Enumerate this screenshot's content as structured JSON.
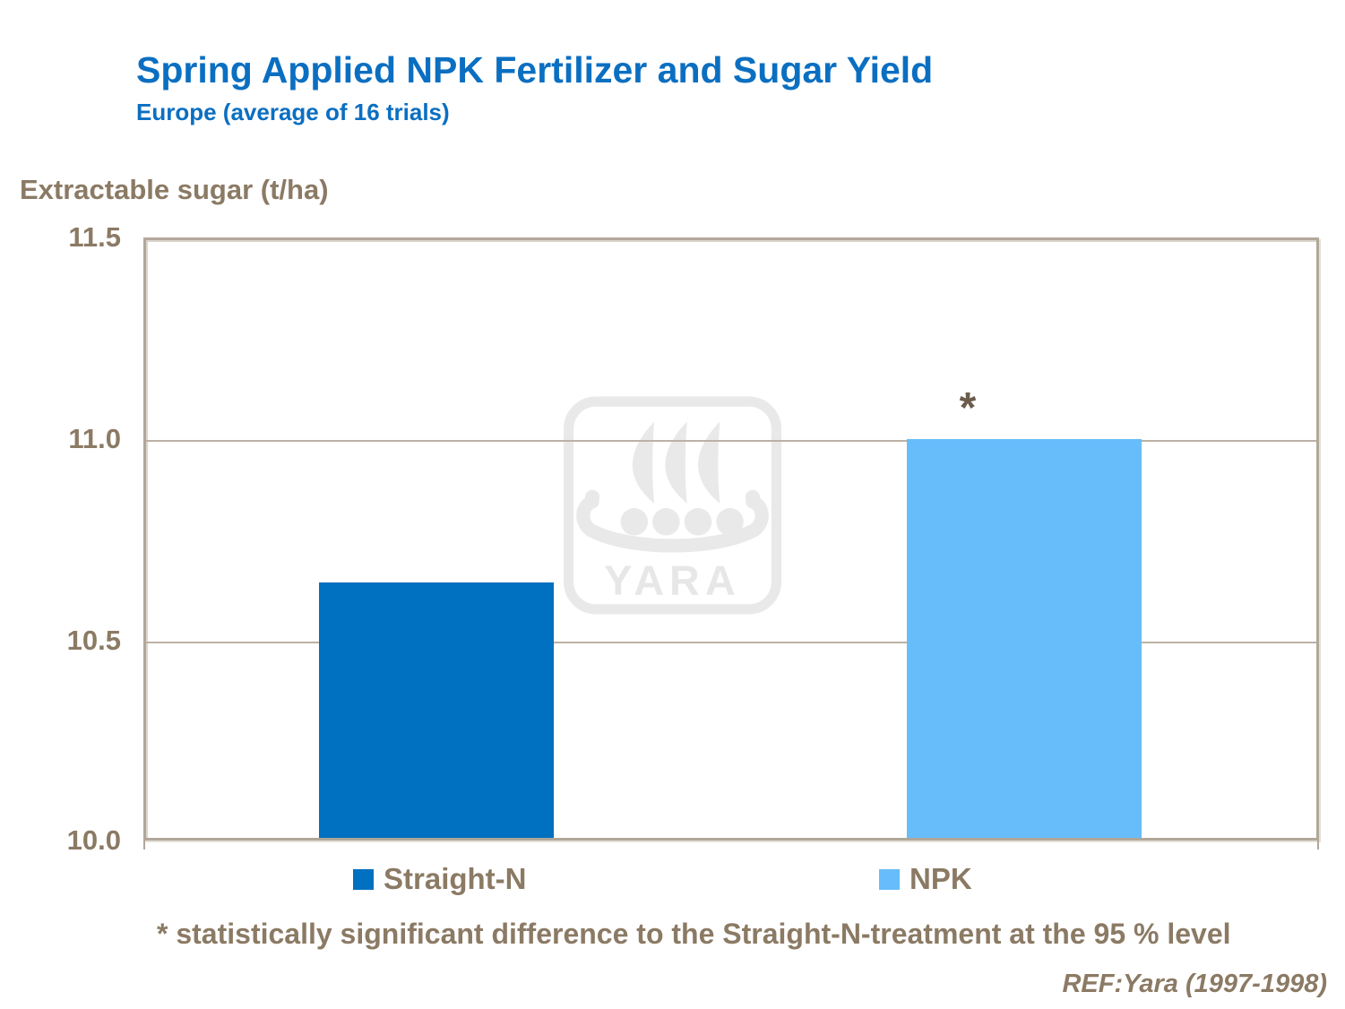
{
  "header": {
    "title": "Spring Applied NPK Fertilizer and Sugar Yield",
    "subtitle": "Europe (average of 16 trials)"
  },
  "axis": {
    "y_title": "Extractable sugar (t/ha)"
  },
  "chart_data": {
    "type": "bar",
    "title": "Spring Applied NPK Fertilizer and Sugar Yield",
    "subtitle": "Europe (average of 16 trials)",
    "ylabel": "Extractable sugar (t/ha)",
    "xlabel": "",
    "categories": [
      "Straight-N",
      "NPK"
    ],
    "values": [
      10.64,
      11.0
    ],
    "bar_colors": [
      "#0070C0",
      "#67BCFA"
    ],
    "ylim": [
      10.0,
      11.5
    ],
    "yticks": [
      "11.5",
      "11.0",
      "10.5",
      "10.0"
    ],
    "gridlines_at": [
      11.0,
      10.5
    ],
    "grid": true,
    "legend_position": "bottom",
    "point_annotations": [
      {
        "category": "NPK",
        "marker": "*",
        "meaning": "statistically significant difference to the Straight-N-treatment at the 95 % level"
      }
    ]
  },
  "legend": {
    "items": [
      {
        "label": "Straight-N",
        "color": "#0070C0"
      },
      {
        "label": "NPK",
        "color": "#67BCFA"
      }
    ]
  },
  "annotations": {
    "significance_marker": "*",
    "footnote": "* statistically significant difference to the Straight-N-treatment at the 95 % level",
    "reference": "REF:Yara (1997-1998)"
  },
  "watermark": {
    "name": "yara-logo",
    "text": "YARA",
    "color": "#E9E9E9"
  }
}
